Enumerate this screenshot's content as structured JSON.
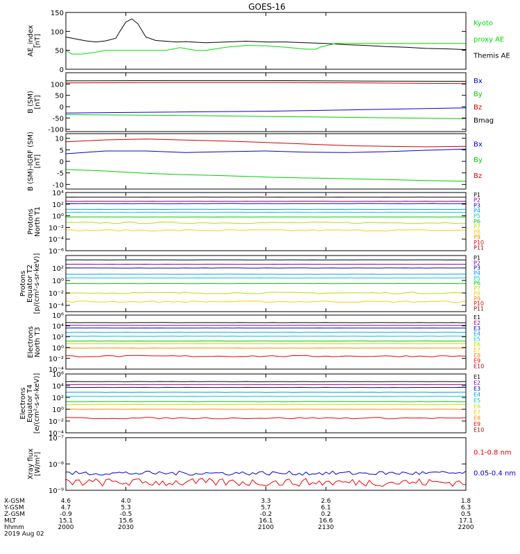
{
  "title": "GOES-16",
  "footer": {
    "date": "2019 Aug 02",
    "row_labels": [
      "X-GSM",
      "Y-GSM",
      "Z-GSM",
      "MLT",
      "hhmm"
    ],
    "columns": [
      [
        "4.6",
        "4.7",
        "-0.9",
        "15.1",
        "2000"
      ],
      [
        "4.0",
        "5.3",
        "-0.5",
        "15.6",
        "2030"
      ],
      [
        "3.3",
        "5.7",
        "-0.2",
        "16.1",
        "2100"
      ],
      [
        "2.6",
        "6.1",
        "0.2",
        "16.6",
        "2130"
      ],
      [
        "1.8",
        "6.3",
        "0.5",
        "17.1",
        "2200"
      ]
    ]
  },
  "chart_data": [
    {
      "type": "line",
      "ylabel": [
        "AE_index",
        "[nT]"
      ],
      "ylim": [
        0,
        150
      ],
      "yticks": [
        0,
        50,
        100,
        150
      ],
      "ytick_labels": [
        "0",
        "50",
        "100",
        "150"
      ],
      "log": false,
      "legend": [
        {
          "label": "Kyoto",
          "color": "#00dd00"
        },
        {
          "label": "proxy AE",
          "color": "#00dd00"
        },
        {
          "label": "Themis AE",
          "color": "#000000"
        }
      ],
      "series": [
        {
          "name": "Themis AE",
          "color": "#000000",
          "x": [
            2000,
            2005,
            2010,
            2015,
            2020,
            2025,
            2027,
            2030,
            2033,
            2036,
            2040,
            2045,
            2050,
            2055,
            2060,
            2070,
            2080,
            2090,
            2100,
            2110,
            2120,
            2130,
            2140,
            2150,
            2160,
            2170,
            2180,
            2190,
            2200
          ],
          "y": [
            85,
            80,
            75,
            72,
            75,
            82,
            100,
            125,
            133,
            120,
            85,
            76,
            74,
            72,
            73,
            70,
            72,
            74,
            72,
            72,
            70,
            68,
            65,
            63,
            60,
            58,
            55,
            54,
            52
          ]
        },
        {
          "name": "Kyoto proxy AE",
          "color": "#00dd00",
          "x": [
            2000,
            2003,
            2008,
            2015,
            2020,
            2030,
            2040,
            2050,
            2057,
            2065,
            2070,
            2080,
            2090,
            2100,
            2110,
            2120,
            2125,
            2128,
            2135,
            2150,
            2160,
            2170,
            2180,
            2190,
            2200
          ],
          "y": [
            50,
            40,
            40,
            45,
            50,
            50,
            50,
            50,
            57,
            50,
            50,
            58,
            63,
            62,
            58,
            53,
            53,
            60,
            68,
            68,
            68,
            68,
            68,
            68,
            68
          ]
        }
      ]
    },
    {
      "type": "line",
      "ylabel": [
        "B (SM)",
        "[nT]"
      ],
      "ylim": [
        -110,
        150
      ],
      "yticks": [
        -100,
        -50,
        0,
        50,
        100
      ],
      "ytick_labels": [
        "-100",
        "-50",
        "0",
        "50",
        "100"
      ],
      "log": false,
      "legend": [
        {
          "label": "Bx",
          "color": "#0000cc"
        },
        {
          "label": "By",
          "color": "#00cc00"
        },
        {
          "label": "Bz",
          "color": "#cc0000"
        },
        {
          "label": "Bmag",
          "color": "#000000"
        }
      ],
      "series": [
        {
          "name": "Bx",
          "color": "#0000cc",
          "x": [
            2000,
            2050,
            2100,
            2150,
            2200
          ],
          "y": [
            -28,
            -24,
            -20,
            -13,
            -5
          ]
        },
        {
          "name": "By",
          "color": "#00cc00",
          "x": [
            2000,
            2050,
            2100,
            2150,
            2200
          ],
          "y": [
            -35,
            -38,
            -43,
            -48,
            -53
          ]
        },
        {
          "name": "Bz",
          "color": "#cc0000",
          "x": [
            2000,
            2050,
            2100,
            2150,
            2200
          ],
          "y": [
            105,
            107,
            107,
            105,
            102
          ]
        },
        {
          "name": "Bmag",
          "color": "#000000",
          "x": [
            2000,
            2050,
            2100,
            2150,
            2200
          ],
          "y": [
            114,
            115,
            115,
            113,
            112
          ]
        }
      ]
    },
    {
      "type": "line",
      "ylabel": [
        "B (SM)-IGRF (SM)",
        "[nT]"
      ],
      "ylim": [
        -12,
        12
      ],
      "yticks": [
        -10,
        -5,
        0,
        5,
        10
      ],
      "ytick_labels": [
        "-10",
        "-5",
        "0",
        "5",
        "10"
      ],
      "log": false,
      "legend": [
        {
          "label": "Bx",
          "color": "#0000cc"
        },
        {
          "label": "By",
          "color": "#00cc00"
        },
        {
          "label": "Bz",
          "color": "#cc0000"
        }
      ],
      "series": [
        {
          "name": "Bx",
          "color": "#0000cc",
          "x": [
            2000,
            2020,
            2040,
            2060,
            2080,
            2100,
            2120,
            2140,
            2160,
            2180,
            2200
          ],
          "y": [
            3.3,
            4.5,
            4.5,
            3.8,
            4.2,
            4.5,
            4.0,
            3.8,
            4.2,
            4.8,
            5.3
          ]
        },
        {
          "name": "By",
          "color": "#00cc00",
          "x": [
            2000,
            2020,
            2040,
            2060,
            2080,
            2100,
            2120,
            2140,
            2160,
            2180,
            2200
          ],
          "y": [
            -3.5,
            -4.2,
            -5.2,
            -5.8,
            -6.2,
            -6.8,
            -7.2,
            -7.5,
            -7.9,
            -8.3,
            -8.6
          ]
        },
        {
          "name": "Bz",
          "color": "#cc0000",
          "x": [
            2000,
            2020,
            2040,
            2060,
            2080,
            2100,
            2120,
            2140,
            2160,
            2180,
            2200
          ],
          "y": [
            8.5,
            9.3,
            9.7,
            9.2,
            8.8,
            8.2,
            7.5,
            6.8,
            6.5,
            6.3,
            6.5
          ]
        }
      ]
    },
    {
      "type": "line",
      "ylabel": [
        "Protons",
        "North T1"
      ],
      "ylim_log10": [
        -6,
        4
      ],
      "yticks": [
        -6,
        -4,
        -2,
        0,
        2,
        4
      ],
      "ytick_labels": [
        "10⁻⁶",
        "10⁻⁴",
        "10⁻²",
        "10⁰",
        "10²",
        "10⁴"
      ],
      "log": true,
      "legend": [
        {
          "label": "P1",
          "color": "#000000"
        },
        {
          "label": "P2",
          "color": "#880088"
        },
        {
          "label": "P3",
          "color": "#0000cc"
        },
        {
          "label": "P4",
          "color": "#0099ff"
        },
        {
          "label": "P5",
          "color": "#00cccc"
        },
        {
          "label": "P6",
          "color": "#00cc00"
        },
        {
          "label": "P7",
          "color": "#bbdd00"
        },
        {
          "label": "P8",
          "color": "#ffcc00"
        },
        {
          "label": "P9",
          "color": "#ff8800"
        },
        {
          "label": "P10",
          "color": "#ee0000"
        },
        {
          "label": "P11",
          "color": "#990000"
        }
      ],
      "series": [
        {
          "name": "P1",
          "color": "#000000",
          "log10_flat": 3.2
        },
        {
          "name": "P2",
          "color": "#880088",
          "log10_flat": 2.5
        },
        {
          "name": "P3",
          "color": "#0000cc",
          "log10_flat": 2.1
        },
        {
          "name": "P4",
          "color": "#0099ff",
          "log10_flat": 1.1
        },
        {
          "name": "P5",
          "color": "#00cccc",
          "log10_flat": 0.6
        },
        {
          "name": "P6",
          "color": "#00cc00",
          "log10_flat": -0.2
        },
        {
          "name": "P7",
          "color": "#bbdd00",
          "log10_flat": -1.2
        },
        {
          "name": "P8",
          "color": "#ffcc00",
          "log10_flat": -2.5
        }
      ]
    },
    {
      "type": "line",
      "ylabel": [
        "Protons",
        "Equator T2",
        "[p/(cm²-s-sr-keV)]"
      ],
      "ylim_log10": [
        -5,
        4
      ],
      "yticks": [
        -4,
        -2,
        0,
        2
      ],
      "ytick_labels": [
        "10⁻⁴",
        "10⁻²",
        "10⁰",
        "10²"
      ],
      "log": true,
      "legend": [
        {
          "label": "P1",
          "color": "#000000"
        },
        {
          "label": "P2",
          "color": "#880088"
        },
        {
          "label": "P3",
          "color": "#0000cc"
        },
        {
          "label": "P4",
          "color": "#0099ff"
        },
        {
          "label": "P5",
          "color": "#00cccc"
        },
        {
          "label": "P6",
          "color": "#00cc00"
        },
        {
          "label": "P7",
          "color": "#bbdd00"
        },
        {
          "label": "P8",
          "color": "#ffcc00"
        },
        {
          "label": "P9",
          "color": "#ff8800"
        },
        {
          "label": "P10",
          "color": "#ee0000"
        },
        {
          "label": "P11",
          "color": "#990000"
        }
      ],
      "series": [
        {
          "name": "P1",
          "color": "#000000",
          "log10_flat": 3.3
        },
        {
          "name": "P2",
          "color": "#880088",
          "log10_flat": 2.6
        },
        {
          "name": "P3",
          "color": "#0000cc",
          "log10_flat": 2.0
        },
        {
          "name": "P4",
          "color": "#0099ff",
          "log10_flat": 1.0
        },
        {
          "name": "P5",
          "color": "#00cccc",
          "log10_flat": 0.4
        },
        {
          "name": "P6",
          "color": "#00cc00",
          "log10_flat": -0.5
        },
        {
          "name": "P7",
          "color": "#bbdd00",
          "log10_flat": -2.0
        },
        {
          "name": "P8",
          "color": "#ffcc00",
          "log10_flat": -3.4
        }
      ]
    },
    {
      "type": "line",
      "ylabel": [
        "Electrons",
        "North T3"
      ],
      "ylim_log10": [
        -4,
        6
      ],
      "yticks": [
        -4,
        -2,
        0,
        2,
        4,
        6
      ],
      "ytick_labels": [
        "10⁻⁴",
        "10⁻²",
        "10⁰",
        "10²",
        "10⁴",
        "10⁶"
      ],
      "log": true,
      "legend": [
        {
          "label": "E1",
          "color": "#000000"
        },
        {
          "label": "E2",
          "color": "#880088"
        },
        {
          "label": "E3",
          "color": "#0000cc"
        },
        {
          "label": "E4",
          "color": "#0099ff"
        },
        {
          "label": "E5",
          "color": "#00cccc"
        },
        {
          "label": "E6",
          "color": "#bbdd00"
        },
        {
          "label": "E7",
          "color": "#ffcc00"
        },
        {
          "label": "E8",
          "color": "#ff8800"
        },
        {
          "label": "E9",
          "color": "#ee0000"
        },
        {
          "label": "E10",
          "color": "#990000"
        }
      ],
      "series": [
        {
          "name": "E1",
          "color": "#000000",
          "log10_flat": 4.6
        },
        {
          "name": "E2",
          "color": "#880088",
          "log10_flat": 4.1
        },
        {
          "name": "E3",
          "color": "#0000cc",
          "log10_flat": 3.6
        },
        {
          "name": "E4",
          "color": "#0099ff",
          "log10_flat": 2.8
        },
        {
          "name": "E5",
          "color": "#00cccc",
          "log10_flat": 2.1
        },
        {
          "name": "E6",
          "color": "#00cc00",
          "log10_flat": 1.2
        },
        {
          "name": "E7",
          "color": "#bbdd00",
          "log10_flat": 0.7
        },
        {
          "name": "E8",
          "color": "#ff8800",
          "log10_flat": -0.1
        },
        {
          "name": "E9",
          "color": "#ee0000",
          "log10_flat": -1.6
        }
      ]
    },
    {
      "type": "line",
      "ylabel": [
        "Electrons",
        "Equator T4",
        "[e/(cm²-s-sr-keV)]"
      ],
      "ylim_log10": [
        -4,
        6
      ],
      "yticks": [
        -4,
        -2,
        0,
        2,
        4,
        6
      ],
      "ytick_labels": [
        "10⁻⁴",
        "10⁻²",
        "10⁰",
        "10²",
        "10⁴",
        "10⁶"
      ],
      "log": true,
      "legend": [
        {
          "label": "E1",
          "color": "#000000"
        },
        {
          "label": "E2",
          "color": "#880088"
        },
        {
          "label": "E3",
          "color": "#0000cc"
        },
        {
          "label": "E4",
          "color": "#0099ff"
        },
        {
          "label": "E5",
          "color": "#00cccc"
        },
        {
          "label": "E6",
          "color": "#bbdd00"
        },
        {
          "label": "E7",
          "color": "#ffcc00"
        },
        {
          "label": "E8",
          "color": "#ff8800"
        },
        {
          "label": "E9",
          "color": "#ee0000"
        },
        {
          "label": "E10",
          "color": "#990000"
        }
      ],
      "series": [
        {
          "name": "E1",
          "color": "#000000",
          "log10_flat": 4.7
        },
        {
          "name": "E2",
          "color": "#880088",
          "log10_flat": 4.2
        },
        {
          "name": "E3",
          "color": "#0000cc",
          "log10_flat": 3.7
        },
        {
          "name": "E4",
          "color": "#0099ff",
          "log10_flat": 2.9
        },
        {
          "name": "E5",
          "color": "#00cccc",
          "log10_flat": 2.2
        },
        {
          "name": "E6",
          "color": "#00cc00",
          "log10_flat": 1.3
        },
        {
          "name": "E7",
          "color": "#bbdd00",
          "log10_flat": 0.8
        },
        {
          "name": "E8",
          "color": "#ff8800",
          "log10_flat": 0.0
        },
        {
          "name": "E9",
          "color": "#ee0000",
          "log10_flat": -1.5
        }
      ]
    },
    {
      "type": "line",
      "ylabel": [
        "Xray flux",
        "[W/m²]"
      ],
      "ylim_log10": [
        -9,
        -7
      ],
      "yticks": [
        -9,
        -8,
        -7
      ],
      "ytick_labels": [
        "10⁻⁹",
        "10⁻⁸",
        "10⁻⁷"
      ],
      "log": true,
      "legend": [
        {
          "label": "0.1-0.8 nm",
          "color": "#ee0000"
        },
        {
          "label": "0.05-0.4 nm",
          "color": "#0000cc"
        }
      ],
      "series": [
        {
          "name": "0.1-0.8 nm",
          "color": "#ee0000",
          "log10_noise": [
            -8.7,
            0.15
          ]
        },
        {
          "name": "0.05-0.4 nm",
          "color": "#0000cc",
          "log10_noise": [
            -8.35,
            0.08
          ]
        }
      ]
    }
  ]
}
